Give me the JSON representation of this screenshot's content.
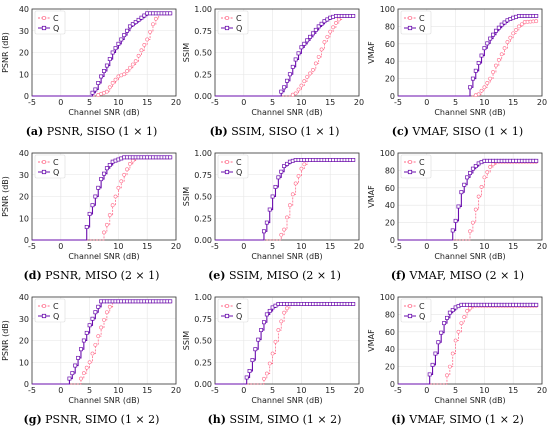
{
  "colors": {
    "C": "#ff6b8a",
    "Q": "#6a0dad",
    "grid": "#e6e6e6",
    "axis": "#333333"
  },
  "panels": [
    {
      "label": "(a)",
      "caption": "PSNR, SISO (1 × 1)"
    },
    {
      "label": "(b)",
      "caption": "SSIM, SISO (1 × 1)"
    },
    {
      "label": "(c)",
      "caption": "VMAF, SISO (1 × 1)"
    },
    {
      "label": "(d)",
      "caption": "PSNR, MISO (2 × 1)"
    },
    {
      "label": "(e)",
      "caption": "SSIM, MISO (2 × 1)"
    },
    {
      "label": "(f)",
      "caption": "VMAF, MISO (2 × 1)"
    },
    {
      "label": "(g)",
      "caption": "PSNR, SIMO (1 × 2)"
    },
    {
      "label": "(h)",
      "caption": "SSIM, SIMO (1 × 2)"
    },
    {
      "label": "(i)",
      "caption": "VMAF, SIMO (1 × 2)"
    }
  ],
  "chart_data": [
    {
      "type": "line",
      "title": "",
      "xlabel": "Channel SNR (dB)",
      "ylabel": "PSNR (dB)",
      "xlim": [
        -5,
        20
      ],
      "ylim": [
        0,
        40
      ],
      "xticks": [
        -5,
        0,
        5,
        10,
        15,
        20
      ],
      "yticks": [
        0,
        10,
        20,
        30,
        40
      ],
      "grid": true,
      "legend_position": "top-left",
      "series": [
        {
          "name": "C",
          "x": [
            -5,
            6,
            8,
            9,
            10,
            11,
            12,
            13,
            14,
            15,
            16,
            17,
            19
          ],
          "values": [
            0,
            0,
            2,
            6,
            9,
            10,
            13,
            16,
            21,
            26,
            33,
            38,
            38
          ]
        },
        {
          "name": "Q",
          "x": [
            -5,
            5,
            6,
            7,
            8,
            9,
            10,
            11,
            12,
            13,
            14,
            15,
            19
          ],
          "values": [
            0,
            0,
            3,
            9,
            14,
            20,
            24,
            28,
            32,
            34,
            36,
            38,
            38
          ]
        }
      ]
    },
    {
      "type": "line",
      "title": "",
      "xlabel": "Channel SNR (dB)",
      "ylabel": "SSIM",
      "xlim": [
        -5,
        20
      ],
      "ylim": [
        0,
        1.0
      ],
      "xticks": [
        -5,
        0,
        5,
        10,
        15,
        20
      ],
      "yticks": [
        0.0,
        0.25,
        0.5,
        0.75,
        1.0
      ],
      "grid": true,
      "legend_position": "top-left",
      "series": [
        {
          "name": "C",
          "x": [
            -5,
            8,
            9,
            10,
            11,
            12,
            13,
            14,
            15,
            16,
            17,
            19
          ],
          "values": [
            0,
            0,
            0.03,
            0.12,
            0.22,
            0.3,
            0.45,
            0.62,
            0.74,
            0.84,
            0.92,
            0.92
          ]
        },
        {
          "name": "Q",
          "x": [
            -5,
            6,
            7,
            8,
            9,
            10,
            11,
            12,
            13,
            14,
            15,
            16,
            19
          ],
          "values": [
            0,
            0,
            0.1,
            0.25,
            0.42,
            0.56,
            0.64,
            0.72,
            0.8,
            0.86,
            0.9,
            0.92,
            0.92
          ]
        }
      ]
    },
    {
      "type": "line",
      "title": "",
      "xlabel": "Channel SNR (dB)",
      "ylabel": "VMAF",
      "xlim": [
        -5,
        20
      ],
      "ylim": [
        0,
        100
      ],
      "xticks": [
        -5,
        0,
        5,
        10,
        15,
        20
      ],
      "yticks": [
        0,
        20,
        40,
        60,
        80,
        100
      ],
      "grid": true,
      "legend_position": "top-left",
      "series": [
        {
          "name": "C",
          "x": [
            -5,
            8,
            9,
            10,
            11,
            12,
            13,
            14,
            15,
            16,
            17,
            19
          ],
          "values": [
            0,
            0,
            2,
            10,
            20,
            35,
            48,
            62,
            72,
            80,
            85,
            86
          ]
        },
        {
          "name": "Q",
          "x": [
            -5,
            7,
            8,
            9,
            10,
            11,
            12,
            13,
            14,
            15,
            16,
            19
          ],
          "values": [
            0,
            0,
            20,
            38,
            55,
            66,
            75,
            82,
            87,
            90,
            92,
            92
          ]
        }
      ]
    },
    {
      "type": "line",
      "title": "",
      "xlabel": "Channel SNR (dB)",
      "ylabel": "PSNR (dB)",
      "xlim": [
        -5,
        20
      ],
      "ylim": [
        0,
        40
      ],
      "xticks": [
        -5,
        0,
        5,
        10,
        15,
        20
      ],
      "yticks": [
        0,
        10,
        20,
        30,
        40
      ],
      "grid": true,
      "legend_position": "top-left",
      "series": [
        {
          "name": "C",
          "x": [
            -5,
            7,
            8,
            9,
            10,
            11,
            12,
            13,
            19
          ],
          "values": [
            0,
            0,
            7,
            16,
            24,
            30,
            35,
            38,
            38
          ]
        },
        {
          "name": "Q",
          "x": [
            -5,
            4,
            5,
            6,
            7,
            8,
            9,
            10,
            11,
            19
          ],
          "values": [
            0,
            0,
            12,
            20,
            28,
            33,
            36,
            37,
            38,
            38
          ]
        }
      ]
    },
    {
      "type": "line",
      "title": "",
      "xlabel": "Channel SNR (dB)",
      "ylabel": "SSIM",
      "xlim": [
        -5,
        20
      ],
      "ylim": [
        0,
        1.0
      ],
      "xticks": [
        -5,
        0,
        5,
        10,
        15,
        20
      ],
      "yticks": [
        0.0,
        0.25,
        0.5,
        0.75,
        1.0
      ],
      "grid": true,
      "legend_position": "top-left",
      "series": [
        {
          "name": "C",
          "x": [
            -5,
            6,
            7,
            8,
            9,
            10,
            11,
            19
          ],
          "values": [
            0,
            0,
            0.12,
            0.4,
            0.65,
            0.82,
            0.92,
            0.92
          ]
        },
        {
          "name": "Q",
          "x": [
            -5,
            3,
            4,
            5,
            6,
            7,
            8,
            9,
            19
          ],
          "values": [
            0,
            0,
            0.2,
            0.5,
            0.72,
            0.85,
            0.9,
            0.92,
            0.92
          ]
        }
      ]
    },
    {
      "type": "line",
      "title": "",
      "xlabel": "Channel SNR (dB)",
      "ylabel": "VMAF",
      "xlim": [
        -5,
        20
      ],
      "ylim": [
        0,
        100
      ],
      "xticks": [
        -5,
        0,
        5,
        10,
        15,
        20
      ],
      "yticks": [
        0,
        20,
        40,
        60,
        80,
        100
      ],
      "grid": true,
      "legend_position": "top-left",
      "series": [
        {
          "name": "C",
          "x": [
            -5,
            7,
            8,
            9,
            10,
            11,
            12,
            19
          ],
          "values": [
            0,
            0,
            20,
            50,
            72,
            84,
            90,
            90
          ]
        },
        {
          "name": "Q",
          "x": [
            -5,
            4,
            5,
            6,
            7,
            8,
            9,
            10,
            19
          ],
          "values": [
            0,
            0,
            22,
            55,
            72,
            82,
            88,
            91,
            91
          ]
        }
      ]
    },
    {
      "type": "line",
      "title": "",
      "xlabel": "Channel SNR (dB)",
      "ylabel": "PSNR (dB)",
      "xlim": [
        -5,
        20
      ],
      "ylim": [
        0,
        40
      ],
      "xticks": [
        -5,
        0,
        5,
        10,
        15,
        20
      ],
      "yticks": [
        0,
        10,
        20,
        30,
        40
      ],
      "grid": true,
      "legend_position": "top-left",
      "series": [
        {
          "name": "C",
          "x": [
            -5,
            3,
            4,
            5,
            6,
            7,
            8,
            9,
            19
          ],
          "values": [
            0,
            0,
            5,
            10,
            18,
            26,
            33,
            38,
            38
          ]
        },
        {
          "name": "Q",
          "x": [
            -5,
            1,
            2,
            3,
            4,
            5,
            6,
            7,
            19
          ],
          "values": [
            0,
            0,
            5,
            12,
            20,
            27,
            33,
            38,
            38
          ]
        }
      ]
    },
    {
      "type": "line",
      "title": "",
      "xlabel": "Channel SNR (dB)",
      "ylabel": "SSIM",
      "xlim": [
        -5,
        20
      ],
      "ylim": [
        0,
        1.0
      ],
      "xticks": [
        -5,
        0,
        5,
        10,
        15,
        20
      ],
      "yticks": [
        0.0,
        0.25,
        0.5,
        0.75,
        1.0
      ],
      "grid": true,
      "legend_position": "top-left",
      "series": [
        {
          "name": "C",
          "x": [
            -5,
            3,
            4,
            5,
            6,
            7,
            8,
            19
          ],
          "values": [
            0,
            0,
            0.12,
            0.35,
            0.62,
            0.82,
            0.92,
            0.92
          ]
        },
        {
          "name": "Q",
          "x": [
            -5,
            0,
            1,
            2,
            3,
            4,
            5,
            6,
            19
          ],
          "values": [
            0,
            0,
            0.15,
            0.4,
            0.62,
            0.8,
            0.88,
            0.92,
            0.92
          ]
        }
      ]
    },
    {
      "type": "line",
      "title": "",
      "xlabel": "Channel SNR (dB)",
      "ylabel": "VMAF",
      "xlim": [
        -5,
        20
      ],
      "ylim": [
        0,
        100
      ],
      "xticks": [
        -5,
        0,
        5,
        10,
        15,
        20
      ],
      "yticks": [
        0,
        20,
        40,
        60,
        80,
        100
      ],
      "grid": true,
      "legend_position": "top-left",
      "series": [
        {
          "name": "C",
          "x": [
            -5,
            3,
            4,
            5,
            6,
            7,
            8,
            19
          ],
          "values": [
            0,
            0,
            20,
            50,
            70,
            84,
            90,
            90
          ]
        },
        {
          "name": "Q",
          "x": [
            -5,
            0,
            1,
            2,
            3,
            4,
            5,
            6,
            19
          ],
          "values": [
            0,
            0,
            22,
            48,
            70,
            82,
            88,
            91,
            91
          ]
        }
      ]
    }
  ]
}
